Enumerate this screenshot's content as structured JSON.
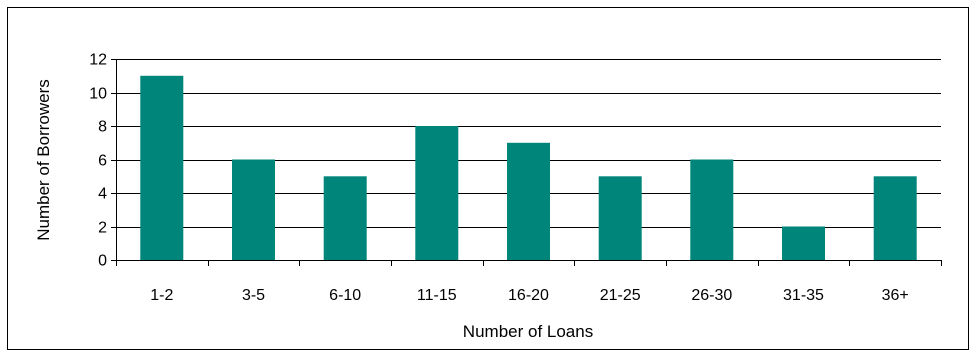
{
  "chart_data": {
    "type": "bar",
    "title": "",
    "xlabel": "Number of Loans",
    "ylabel": "Number of Borrowers",
    "categories": [
      "1-2",
      "3-5",
      "6-10",
      "11-15",
      "16-20",
      "21-25",
      "26-30",
      "31-35",
      "36+"
    ],
    "values": [
      11,
      6,
      5,
      8,
      7,
      5,
      6,
      2,
      5
    ],
    "ylim": [
      0,
      12
    ],
    "yticks": [
      0,
      2,
      4,
      6,
      8,
      10,
      12
    ],
    "grid": true,
    "legend": "none",
    "colors": {
      "bar": "#00857A",
      "axis": "#000000",
      "grid": "#000000",
      "frame": "#000000"
    }
  }
}
